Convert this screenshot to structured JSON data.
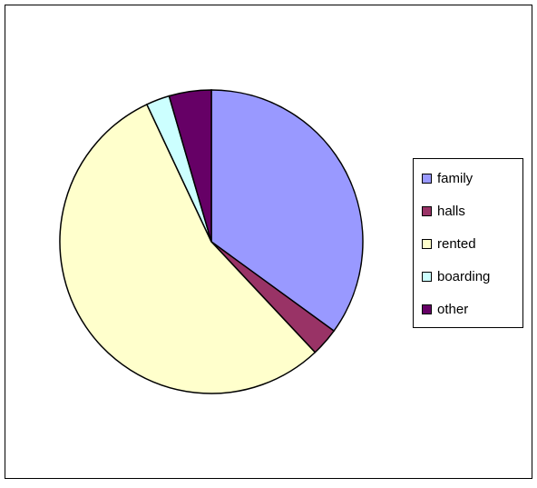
{
  "chart_data": {
    "type": "pie",
    "categories": [
      "family",
      "halls",
      "rented",
      "boarding",
      "other"
    ],
    "values": [
      35,
      3,
      55,
      2.5,
      4.5
    ],
    "colors": [
      "#9999ff",
      "#993366",
      "#ffffcc",
      "#ccffff",
      "#660066"
    ],
    "legend": "right"
  }
}
